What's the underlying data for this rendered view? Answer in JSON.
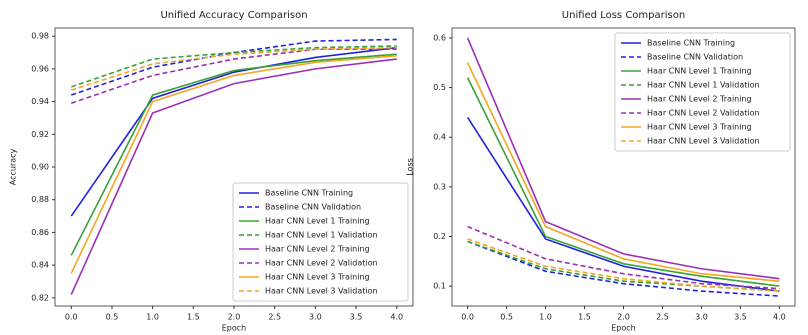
{
  "chart_data": [
    {
      "type": "line",
      "title": "Unified Accuracy Comparison",
      "x_label": "Epoch",
      "y_label": "Accuracy",
      "x": [
        0,
        1,
        2,
        3,
        4
      ],
      "xlim": [
        -0.2,
        4.2
      ],
      "xticks": [
        {
          "value": 0,
          "label": "0.0"
        },
        {
          "value": 0.5,
          "label": "0.5"
        },
        {
          "value": 1,
          "label": "1.0"
        },
        {
          "value": 1.5,
          "label": "1.5"
        },
        {
          "value": 2,
          "label": "2.0"
        },
        {
          "value": 2.5,
          "label": "2.5"
        },
        {
          "value": 3,
          "label": "3.0"
        },
        {
          "value": 3.5,
          "label": "3.5"
        },
        {
          "value": 4,
          "label": "4.0"
        }
      ],
      "ylim": [
        0.815,
        0.985
      ],
      "yticks": [
        0.82,
        0.84,
        0.86,
        0.88,
        {
          "value": 0.9,
          "label": "0.90"
        },
        0.92,
        0.94,
        0.96,
        0.98
      ],
      "legend": "lower right",
      "series": [
        {
          "name": "Baseline CNN Training",
          "color": "#2222dd",
          "linestyle": "solid",
          "values": [
            0.87,
            0.942,
            0.958,
            0.967,
            0.973
          ]
        },
        {
          "name": "Baseline CNN Validation",
          "color": "#2222dd",
          "linestyle": "dashed",
          "values": [
            0.944,
            0.961,
            0.97,
            0.977,
            0.978
          ]
        },
        {
          "name": "Haar CNN Level 1 Training",
          "color": "#3aa13a",
          "linestyle": "solid",
          "values": [
            0.846,
            0.944,
            0.959,
            0.965,
            0.969
          ]
        },
        {
          "name": "Haar CNN Level 1 Validation",
          "color": "#3aa13a",
          "linestyle": "dashed",
          "values": [
            0.949,
            0.966,
            0.97,
            0.973,
            0.974
          ]
        },
        {
          "name": "Haar CNN Level 2 Training",
          "color": "#9b30b8",
          "linestyle": "solid",
          "values": [
            0.822,
            0.933,
            0.951,
            0.96,
            0.966
          ]
        },
        {
          "name": "Haar CNN Level 2 Validation",
          "color": "#9b30b8",
          "linestyle": "dashed",
          "values": [
            0.939,
            0.956,
            0.966,
            0.972,
            0.972
          ]
        },
        {
          "name": "Haar CNN Level 3 Training",
          "color": "#f5a623",
          "linestyle": "solid",
          "values": [
            0.835,
            0.94,
            0.956,
            0.964,
            0.968
          ]
        },
        {
          "name": "Haar CNN Level 3 Validation",
          "color": "#f5a623",
          "linestyle": "dashed",
          "values": [
            0.947,
            0.963,
            0.969,
            0.972,
            0.973
          ]
        }
      ]
    },
    {
      "type": "line",
      "title": "Unified Loss Comparison",
      "x_label": "Epoch",
      "y_label": "Loss",
      "x": [
        0,
        1,
        2,
        3,
        4
      ],
      "xlim": [
        -0.2,
        4.2
      ],
      "xticks": [
        {
          "value": 0,
          "label": "0.0"
        },
        {
          "value": 0.5,
          "label": "0.5"
        },
        {
          "value": 1,
          "label": "1.0"
        },
        {
          "value": 1.5,
          "label": "1.5"
        },
        {
          "value": 2,
          "label": "2.0"
        },
        {
          "value": 2.5,
          "label": "2.5"
        },
        {
          "value": 3,
          "label": "3.0"
        },
        {
          "value": 3.5,
          "label": "3.5"
        },
        {
          "value": 4,
          "label": "4.0"
        }
      ],
      "ylim": [
        0.06,
        0.62
      ],
      "yticks": [
        0.1,
        0.2,
        0.3,
        0.4,
        0.5,
        0.6
      ],
      "legend": "upper right",
      "series": [
        {
          "name": "Baseline CNN Training",
          "color": "#2222dd",
          "linestyle": "solid",
          "values": [
            0.44,
            0.195,
            0.14,
            0.11,
            0.09
          ]
        },
        {
          "name": "Baseline CNN Validation",
          "color": "#2222dd",
          "linestyle": "dashed",
          "values": [
            0.19,
            0.13,
            0.105,
            0.09,
            0.08
          ]
        },
        {
          "name": "Haar CNN Level 1 Training",
          "color": "#3aa13a",
          "linestyle": "solid",
          "values": [
            0.52,
            0.2,
            0.145,
            0.12,
            0.1
          ]
        },
        {
          "name": "Haar CNN Level 1 Validation",
          "color": "#3aa13a",
          "linestyle": "dashed",
          "values": [
            0.19,
            0.135,
            0.11,
            0.1,
            0.09
          ]
        },
        {
          "name": "Haar CNN Level 2 Training",
          "color": "#9b30b8",
          "linestyle": "solid",
          "values": [
            0.6,
            0.23,
            0.165,
            0.135,
            0.115
          ]
        },
        {
          "name": "Haar CNN Level 2 Validation",
          "color": "#9b30b8",
          "linestyle": "dashed",
          "values": [
            0.22,
            0.155,
            0.125,
            0.105,
            0.095
          ]
        },
        {
          "name": "Haar CNN Level 3 Training",
          "color": "#f5a623",
          "linestyle": "solid",
          "values": [
            0.55,
            0.22,
            0.155,
            0.125,
            0.11
          ]
        },
        {
          "name": "Haar CNN Level 3 Validation",
          "color": "#f5a623",
          "linestyle": "dashed",
          "values": [
            0.195,
            0.14,
            0.115,
            0.1,
            0.09
          ]
        }
      ]
    }
  ]
}
